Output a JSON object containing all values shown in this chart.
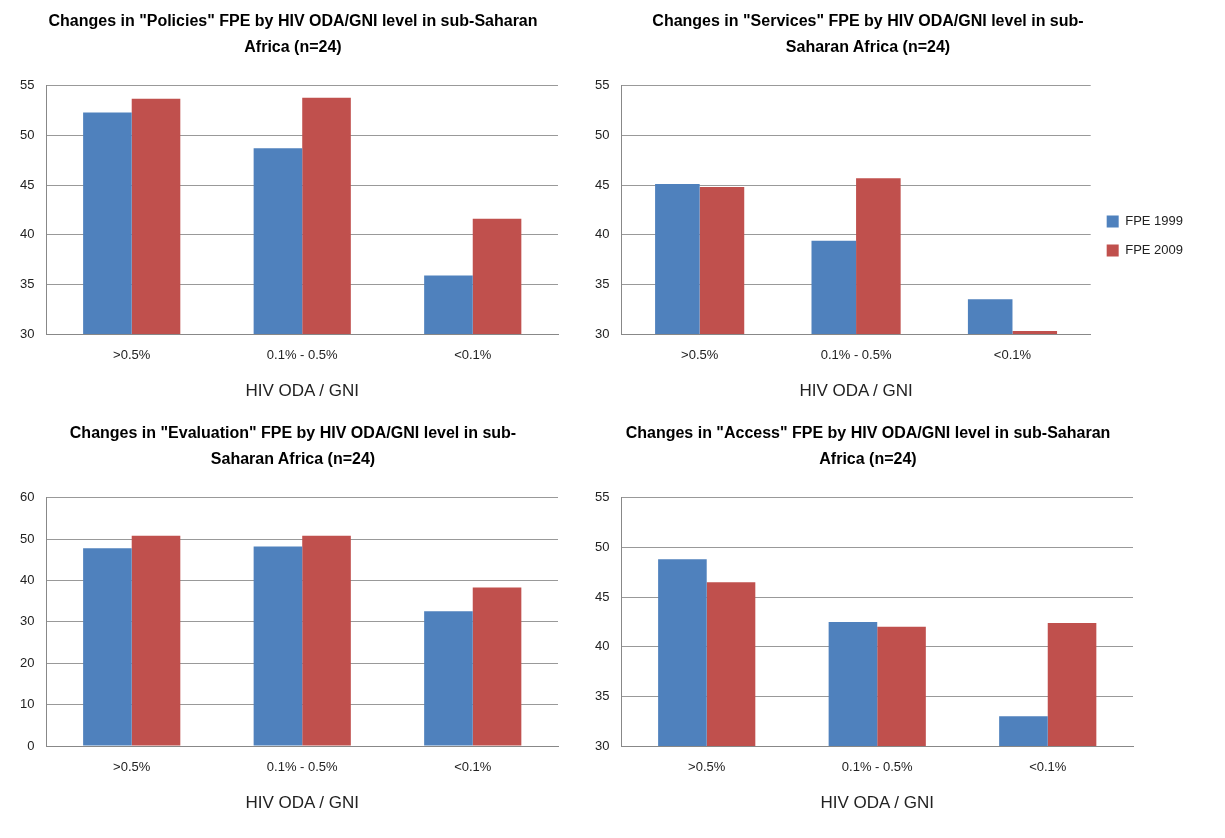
{
  "chart_data": [
    {
      "type": "bar",
      "title": "Changes in \"Policies\" FPE by HIV ODA/GNI level in sub-Saharan Africa (n=24)",
      "xlabel": "HIV ODA / GNI",
      "categories": [
        ">0.5%",
        "0.1% - 0.5%",
        "<0.1%"
      ],
      "ylim": [
        30,
        55
      ],
      "yticks": [
        30,
        35,
        40,
        45,
        50,
        55
      ],
      "grid": "y",
      "legend": false,
      "series": [
        {
          "color": "#4f81bd",
          "values": [
            52.3,
            48.7,
            35.9
          ]
        },
        {
          "color": "#c0504d",
          "values": [
            53.7,
            53.8,
            41.6
          ]
        }
      ]
    },
    {
      "type": "bar",
      "title": "Changes in \"Services\" FPE by HIV ODA/GNI level in sub-Saharan Africa (n=24)",
      "xlabel": "HIV ODA / GNI",
      "categories": [
        ">0.5%",
        "0.1% - 0.5%",
        "<0.1%"
      ],
      "ylim": [
        30,
        55
      ],
      "yticks": [
        30,
        35,
        40,
        45,
        50,
        55
      ],
      "grid": "y",
      "legend": "right",
      "series": [
        {
          "name": "FPE 1999",
          "color": "#4f81bd",
          "values": [
            45.1,
            39.4,
            33.5
          ]
        },
        {
          "name": "FPE 2009",
          "color": "#c0504d",
          "values": [
            44.8,
            45.7,
            30.3
          ]
        }
      ]
    },
    {
      "type": "bar",
      "title": "Changes in \"Evaluation\" FPE by HIV ODA/GNI level in sub-Saharan Africa (n=24)",
      "xlabel": "HIV ODA / GNI",
      "categories": [
        ">0.5%",
        "0.1% - 0.5%",
        "<0.1%"
      ],
      "ylim": [
        0,
        60
      ],
      "yticks": [
        0,
        10,
        20,
        30,
        40,
        50,
        60
      ],
      "grid": "y",
      "legend": false,
      "series": [
        {
          "color": "#4f81bd",
          "values": [
            47.8,
            48.2,
            32.6
          ]
        },
        {
          "color": "#c0504d",
          "values": [
            50.8,
            50.8,
            38.3
          ]
        }
      ]
    },
    {
      "type": "bar",
      "title": "Changes in \"Access\" FPE by HIV ODA/GNI level in sub-Saharan Africa (n=24)",
      "xlabel": "HIV ODA / GNI",
      "categories": [
        ">0.5%",
        "0.1% - 0.5%",
        "<0.1%"
      ],
      "ylim": [
        30,
        55
      ],
      "yticks": [
        30,
        35,
        40,
        45,
        50,
        55
      ],
      "grid": "y",
      "legend": false,
      "series": [
        {
          "color": "#4f81bd",
          "values": [
            48.8,
            42.5,
            33.0
          ]
        },
        {
          "color": "#c0504d",
          "values": [
            46.5,
            42.0,
            42.4
          ]
        }
      ]
    }
  ]
}
